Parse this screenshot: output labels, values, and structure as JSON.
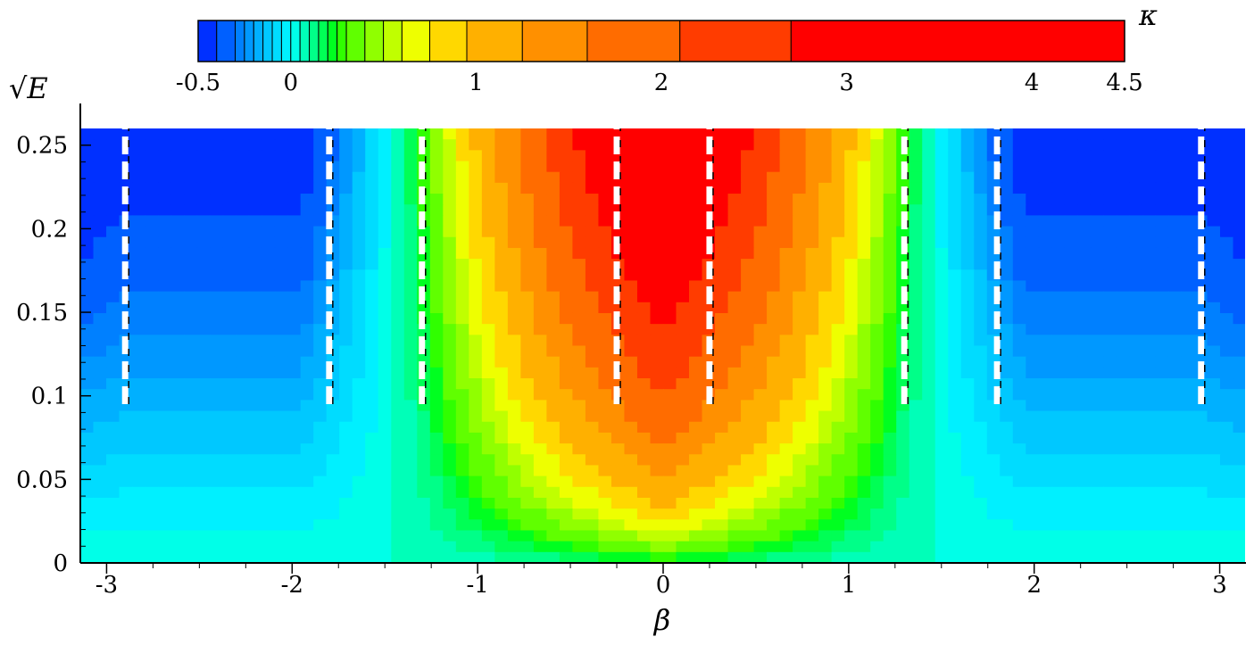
{
  "chart_data": {
    "type": "heatmap",
    "title": "",
    "xlabel": "β",
    "ylabel": "√E",
    "colorbar_label": "κ",
    "xlim": [
      -3.1416,
      3.1416
    ],
    "ylim": [
      0,
      0.26
    ],
    "x_ticks": [
      "-3",
      "-2",
      "-1",
      "0",
      "1",
      "2",
      "3"
    ],
    "x_tick_values": [
      -3,
      -2,
      -1,
      0,
      1,
      2,
      3
    ],
    "y_ticks": [
      "0",
      "0.05",
      "0.1",
      "0.15",
      "0.2",
      "0.25"
    ],
    "y_tick_values": [
      0,
      0.05,
      0.1,
      0.15,
      0.2,
      0.25
    ],
    "colorbar": {
      "range": [
        -0.5,
        4.5
      ],
      "ticks": [
        "-0.5",
        "0",
        "1",
        "2",
        "3",
        "4",
        "4.5"
      ],
      "tick_values": [
        -0.5,
        0,
        1,
        2,
        3,
        4,
        4.5
      ],
      "levels": [
        -0.5,
        -0.4,
        -0.3,
        -0.25,
        -0.2,
        -0.15,
        -0.1,
        -0.05,
        0,
        0.05,
        0.1,
        0.15,
        0.2,
        0.25,
        0.3,
        0.4,
        0.5,
        0.6,
        0.75,
        0.95,
        1.25,
        1.6,
        2.1,
        2.7,
        4.5
      ],
      "colors": [
        "#0030ff",
        "#0060ff",
        "#0080ff",
        "#0098ff",
        "#00b0ff",
        "#00c8ff",
        "#00dcff",
        "#00f0ff",
        "#00ffe8",
        "#00ffb8",
        "#00ff88",
        "#00ff55",
        "#00ff20",
        "#30ff00",
        "#60ff00",
        "#90ff00",
        "#c0ff00",
        "#eeff00",
        "#ffd800",
        "#ffb000",
        "#ff9000",
        "#ff6c00",
        "#ff3c00",
        "#ff0000"
      ]
    },
    "dashed_vertical_curves_beta": [
      -2.9,
      -1.8,
      -1.3,
      -0.25,
      0.25,
      1.3,
      1.8,
      2.9
    ],
    "annotations": []
  }
}
